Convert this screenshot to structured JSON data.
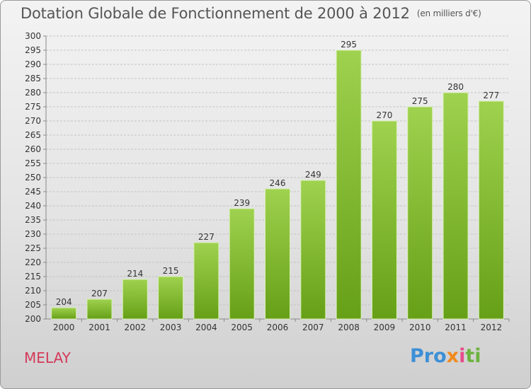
{
  "header": {
    "title": "Dotation Globale de Fonctionnement de 2000 à 2012",
    "unit": "(en milliers d'€)"
  },
  "commune": "MELAY",
  "logo": {
    "text": "Proxiti"
  },
  "colors": {
    "bar_light": "#9acd4a",
    "bar_dark": "#6aa119",
    "grid": "#c8c8c8",
    "title": "#555555",
    "commune": "#d43a5a"
  },
  "chart_data": {
    "type": "bar",
    "categories": [
      "2000",
      "2001",
      "2002",
      "2003",
      "2004",
      "2005",
      "2006",
      "2007",
      "2008",
      "2009",
      "2010",
      "2011",
      "2012"
    ],
    "values": [
      204,
      207,
      214,
      215,
      227,
      239,
      246,
      249,
      295,
      270,
      275,
      280,
      277
    ],
    "data_labels": [
      "204",
      "207",
      "214",
      "215",
      "227",
      "239",
      "246",
      "249",
      "295",
      "270",
      "275",
      "280",
      "277"
    ],
    "ylim": [
      200,
      300
    ],
    "yticks": [
      200,
      205,
      210,
      215,
      220,
      225,
      230,
      235,
      240,
      245,
      250,
      255,
      260,
      265,
      270,
      275,
      280,
      285,
      290,
      295,
      300
    ],
    "title": "Dotation Globale de Fonctionnement de 2000 à 2012",
    "xlabel": "",
    "ylabel": "",
    "grid": true
  }
}
